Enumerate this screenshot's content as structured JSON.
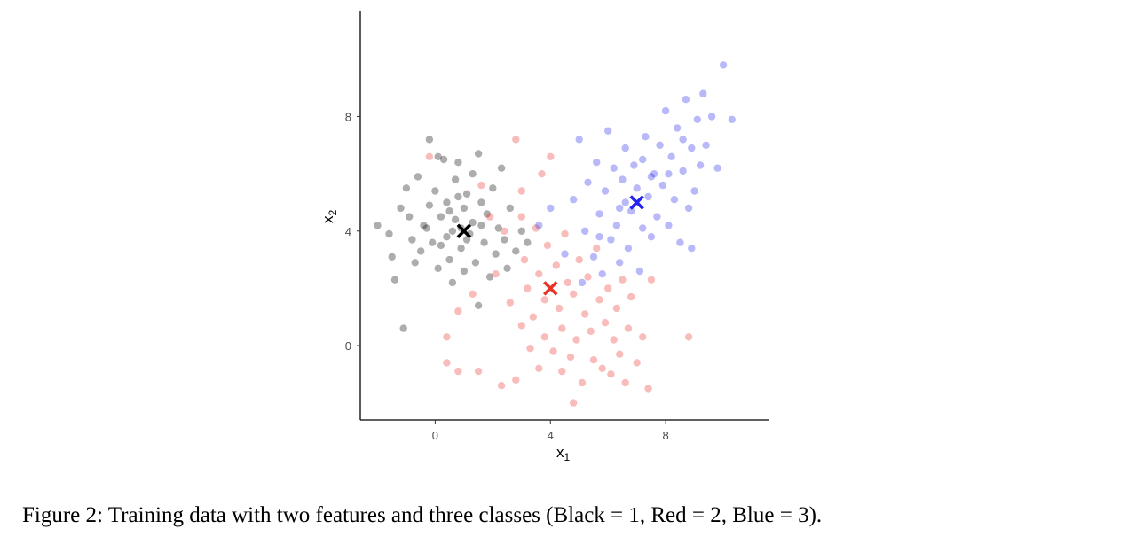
{
  "caption": "Figure 2: Training data with two features and three classes (Black = 1, Red = 2, Blue = 3).",
  "colors": {
    "black": "#000000",
    "red": "#e8332a",
    "blue": "#2424f0",
    "axis": "#000000",
    "tick_text": "#4d4d4d"
  },
  "chart_data": {
    "type": "scatter",
    "xlabel": {
      "main": "x",
      "sub": "1"
    },
    "ylabel": {
      "main": "x",
      "sub": "2"
    },
    "xlim": [
      -2.6,
      11.6
    ],
    "ylim": [
      -2.6,
      11.7
    ],
    "xticks": [
      0,
      4,
      8
    ],
    "yticks": [
      0,
      4,
      8
    ],
    "grid": false,
    "series": [
      {
        "color": "#000000",
        "centroid": [
          1.0,
          4.0
        ],
        "points": [
          [
            -2.0,
            4.2
          ],
          [
            -1.6,
            3.9
          ],
          [
            -1.5,
            3.1
          ],
          [
            -1.4,
            2.3
          ],
          [
            -1.2,
            4.8
          ],
          [
            -1.0,
            5.5
          ],
          [
            -0.9,
            4.5
          ],
          [
            -0.8,
            3.7
          ],
          [
            -0.7,
            2.9
          ],
          [
            -0.6,
            5.9
          ],
          [
            -0.5,
            3.3
          ],
          [
            -0.4,
            4.2
          ],
          [
            -0.2,
            7.2
          ],
          [
            -0.2,
            4.9
          ],
          [
            -0.1,
            3.6
          ],
          [
            0.0,
            5.4
          ],
          [
            0.1,
            2.7
          ],
          [
            0.2,
            4.5
          ],
          [
            0.3,
            6.5
          ],
          [
            0.4,
            5.0
          ],
          [
            0.4,
            3.8
          ],
          [
            0.5,
            3.0
          ],
          [
            0.6,
            2.2
          ],
          [
            0.7,
            4.4
          ],
          [
            0.7,
            5.8
          ],
          [
            0.8,
            6.4
          ],
          [
            0.9,
            3.4
          ],
          [
            1.0,
            4.8
          ],
          [
            1.0,
            2.6
          ],
          [
            1.1,
            5.3
          ],
          [
            1.2,
            3.9
          ],
          [
            1.3,
            6.0
          ],
          [
            1.3,
            4.3
          ],
          [
            1.4,
            2.9
          ],
          [
            1.5,
            1.4
          ],
          [
            1.5,
            6.7
          ],
          [
            1.6,
            5.0
          ],
          [
            1.7,
            3.6
          ],
          [
            1.8,
            4.6
          ],
          [
            1.9,
            2.4
          ],
          [
            2.0,
            5.5
          ],
          [
            2.1,
            3.2
          ],
          [
            2.2,
            4.1
          ],
          [
            2.3,
            6.2
          ],
          [
            2.4,
            3.7
          ],
          [
            2.5,
            2.7
          ],
          [
            2.6,
            4.8
          ],
          [
            2.8,
            3.3
          ],
          [
            3.0,
            4.0
          ],
          [
            3.2,
            3.6
          ],
          [
            0.1,
            6.6
          ],
          [
            -0.3,
            4.1
          ],
          [
            0.6,
            4.0
          ],
          [
            0.9,
            4.1
          ],
          [
            1.1,
            3.7
          ],
          [
            0.5,
            4.7
          ],
          [
            0.2,
            3.5
          ],
          [
            1.6,
            4.2
          ],
          [
            0.8,
            5.2
          ],
          [
            -1.1,
            0.6
          ]
        ]
      },
      {
        "color": "#e8332a",
        "centroid": [
          4.0,
          2.0
        ],
        "points": [
          [
            -0.2,
            6.6
          ],
          [
            0.4,
            -0.6
          ],
          [
            0.4,
            0.3
          ],
          [
            0.8,
            -0.9
          ],
          [
            0.8,
            1.2
          ],
          [
            1.3,
            1.8
          ],
          [
            1.5,
            -0.9
          ],
          [
            1.6,
            5.6
          ],
          [
            1.9,
            4.5
          ],
          [
            2.1,
            2.5
          ],
          [
            2.3,
            -1.4
          ],
          [
            2.6,
            1.5
          ],
          [
            2.8,
            7.2
          ],
          [
            2.8,
            -1.2
          ],
          [
            3.0,
            0.7
          ],
          [
            3.0,
            5.4
          ],
          [
            3.1,
            3.0
          ],
          [
            3.2,
            2.0
          ],
          [
            3.3,
            -0.1
          ],
          [
            3.4,
            1.0
          ],
          [
            3.5,
            4.1
          ],
          [
            3.6,
            2.5
          ],
          [
            3.6,
            -0.8
          ],
          [
            3.7,
            6.0
          ],
          [
            3.8,
            1.6
          ],
          [
            3.8,
            0.3
          ],
          [
            3.9,
            3.5
          ],
          [
            4.0,
            6.6
          ],
          [
            4.1,
            -0.2
          ],
          [
            4.2,
            2.8
          ],
          [
            4.3,
            1.3
          ],
          [
            4.4,
            0.6
          ],
          [
            4.5,
            3.9
          ],
          [
            4.6,
            2.2
          ],
          [
            4.7,
            -0.4
          ],
          [
            4.8,
            -2.0
          ],
          [
            4.8,
            1.8
          ],
          [
            4.9,
            0.2
          ],
          [
            5.0,
            3.0
          ],
          [
            5.1,
            -1.3
          ],
          [
            5.2,
            1.1
          ],
          [
            5.3,
            2.4
          ],
          [
            5.4,
            0.5
          ],
          [
            5.5,
            -0.5
          ],
          [
            5.6,
            3.4
          ],
          [
            5.7,
            1.6
          ],
          [
            5.8,
            -0.8
          ],
          [
            5.9,
            0.8
          ],
          [
            6.0,
            2.0
          ],
          [
            6.1,
            -1.0
          ],
          [
            6.2,
            0.2
          ],
          [
            6.3,
            1.3
          ],
          [
            6.4,
            -0.3
          ],
          [
            6.5,
            2.3
          ],
          [
            6.6,
            -1.3
          ],
          [
            6.7,
            0.6
          ],
          [
            6.8,
            1.7
          ],
          [
            7.0,
            -0.6
          ],
          [
            7.2,
            0.3
          ],
          [
            7.4,
            -1.5
          ],
          [
            7.5,
            2.3
          ],
          [
            8.8,
            0.3
          ],
          [
            3.0,
            4.5
          ],
          [
            2.4,
            4.0
          ],
          [
            4.4,
            -0.9
          ]
        ]
      },
      {
        "color": "#2424f0",
        "centroid": [
          7.0,
          5.0
        ],
        "points": [
          [
            3.6,
            4.2
          ],
          [
            4.0,
            4.8
          ],
          [
            4.5,
            3.2
          ],
          [
            4.8,
            5.1
          ],
          [
            5.0,
            7.2
          ],
          [
            5.1,
            2.2
          ],
          [
            5.2,
            4.0
          ],
          [
            5.3,
            5.7
          ],
          [
            5.5,
            3.1
          ],
          [
            5.6,
            6.4
          ],
          [
            5.7,
            4.6
          ],
          [
            5.8,
            2.5
          ],
          [
            5.9,
            5.4
          ],
          [
            6.0,
            7.5
          ],
          [
            6.1,
            3.7
          ],
          [
            6.2,
            6.2
          ],
          [
            6.3,
            4.2
          ],
          [
            6.4,
            2.9
          ],
          [
            6.5,
            5.8
          ],
          [
            6.6,
            6.9
          ],
          [
            6.7,
            3.4
          ],
          [
            6.8,
            4.7
          ],
          [
            6.9,
            6.3
          ],
          [
            7.0,
            5.5
          ],
          [
            7.1,
            2.6
          ],
          [
            7.2,
            4.1
          ],
          [
            7.3,
            7.3
          ],
          [
            7.4,
            5.2
          ],
          [
            7.5,
            3.8
          ],
          [
            7.6,
            6.0
          ],
          [
            7.7,
            4.5
          ],
          [
            7.8,
            7.0
          ],
          [
            7.9,
            5.6
          ],
          [
            8.0,
            8.2
          ],
          [
            8.1,
            4.2
          ],
          [
            8.2,
            6.6
          ],
          [
            8.3,
            5.1
          ],
          [
            8.4,
            7.6
          ],
          [
            8.5,
            3.6
          ],
          [
            8.6,
            6.1
          ],
          [
            8.7,
            8.6
          ],
          [
            8.8,
            4.8
          ],
          [
            8.9,
            6.9
          ],
          [
            9.0,
            5.4
          ],
          [
            9.1,
            7.9
          ],
          [
            9.2,
            6.3
          ],
          [
            9.4,
            7.0
          ],
          [
            9.6,
            8.0
          ],
          [
            9.8,
            6.2
          ],
          [
            10.0,
            9.8
          ],
          [
            10.3,
            7.9
          ],
          [
            8.9,
            3.4
          ],
          [
            7.5,
            5.9
          ],
          [
            6.6,
            5.0
          ],
          [
            8.1,
            6.0
          ],
          [
            5.7,
            3.8
          ],
          [
            6.4,
            4.8
          ],
          [
            7.2,
            6.5
          ],
          [
            8.6,
            7.2
          ],
          [
            9.3,
            8.8
          ]
        ]
      }
    ]
  }
}
